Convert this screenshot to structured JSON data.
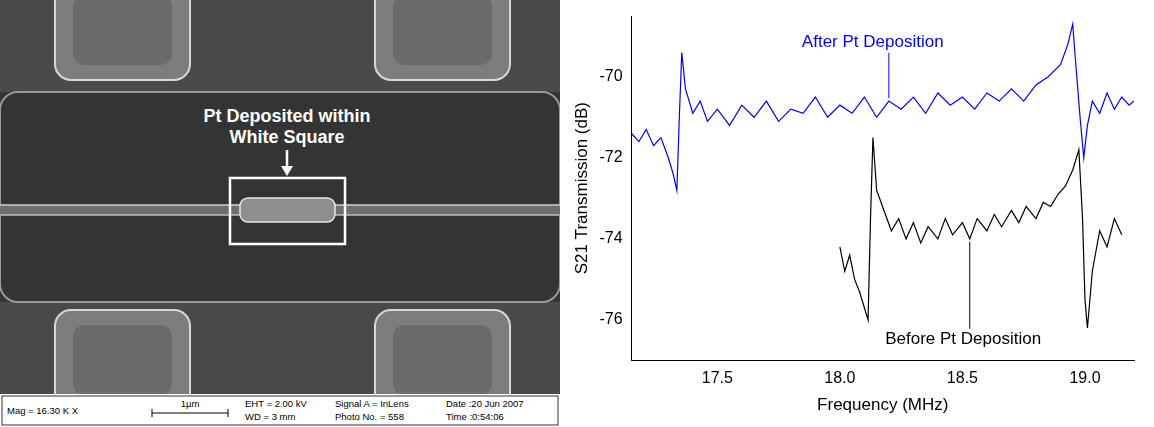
{
  "sem_image": {
    "annotation": "Pt Deposited within White Square",
    "info_bar": {
      "magnification": "Mag = 16.30 K X",
      "scale_bar": "1µm",
      "eht": "EHT = 2.00 kV",
      "wd": "WD = 3 mm",
      "signal": "Signal A = InLens",
      "photo": "Photo No. = 558",
      "date": "Date :20 Jun 2007",
      "time": "Time :0:54:06"
    }
  },
  "chart_data": {
    "type": "line",
    "x_label": "Frequency (MHz)",
    "y_label": "S21 Transmission (dB)",
    "xlim": [
      17.15,
      19.2
    ],
    "xticks": [
      17.5,
      {
        "value": 18,
        "label": "18.0"
      },
      18.5,
      {
        "value": 19,
        "label": "19.0"
      }
    ],
    "ylim": [
      -77,
      -68.5
    ],
    "yticks": [
      -76,
      -74,
      -72,
      -70
    ],
    "grid": false,
    "marker": "none",
    "line_style": "solid",
    "series": [
      {
        "name": "After Pt Deposition",
        "color": "#0000ff",
        "x": [
          17.15,
          17.18,
          17.21,
          17.24,
          17.27,
          17.3,
          17.32,
          17.335,
          17.345,
          17.355,
          17.37,
          17.4,
          17.43,
          17.46,
          17.5,
          17.55,
          17.6,
          17.65,
          17.7,
          17.75,
          17.8,
          17.85,
          17.9,
          17.95,
          18.0,
          18.05,
          18.1,
          18.15,
          18.2,
          18.25,
          18.3,
          18.35,
          18.4,
          18.45,
          18.5,
          18.55,
          18.6,
          18.65,
          18.7,
          18.75,
          18.8,
          18.85,
          18.9,
          18.93,
          18.95,
          18.96,
          18.98,
          18.995,
          19.01,
          19.03,
          19.06,
          19.09,
          19.12,
          19.15,
          19.18,
          19.2
        ],
        "values": [
          -71.4,
          -71.6,
          -71.3,
          -71.7,
          -71.5,
          -72.0,
          -72.4,
          -72.8,
          -71.0,
          -69.4,
          -70.3,
          -70.9,
          -70.6,
          -71.1,
          -70.8,
          -71.2,
          -70.7,
          -71.0,
          -70.6,
          -71.1,
          -70.8,
          -70.9,
          -70.5,
          -71.0,
          -70.7,
          -70.9,
          -70.5,
          -71.0,
          -70.6,
          -70.8,
          -70.5,
          -70.9,
          -70.4,
          -70.7,
          -70.5,
          -70.8,
          -70.4,
          -70.6,
          -70.3,
          -70.6,
          -70.2,
          -70.0,
          -69.7,
          -69.2,
          -68.7,
          -69.5,
          -71.0,
          -72.0,
          -71.2,
          -70.6,
          -70.9,
          -70.4,
          -70.8,
          -70.5,
          -70.7,
          -70.6
        ]
      },
      {
        "name": "Before Pt Deposition",
        "color": "#000000",
        "x": [
          18.0,
          18.02,
          18.04,
          18.06,
          18.08,
          18.1,
          18.115,
          18.125,
          18.135,
          18.15,
          18.18,
          18.21,
          18.24,
          18.27,
          18.3,
          18.33,
          18.36,
          18.4,
          18.43,
          18.46,
          18.5,
          18.53,
          18.56,
          18.6,
          18.63,
          18.66,
          18.7,
          18.73,
          18.76,
          18.8,
          18.83,
          18.86,
          18.89,
          18.92,
          18.95,
          18.975,
          18.99,
          19.0,
          19.01,
          19.03,
          19.06,
          19.09,
          19.12,
          19.15
        ],
        "values": [
          -74.2,
          -74.8,
          -74.4,
          -75.0,
          -75.3,
          -75.7,
          -76.0,
          -73.5,
          -71.5,
          -72.8,
          -73.3,
          -73.8,
          -73.5,
          -74.0,
          -73.6,
          -74.1,
          -73.7,
          -74.0,
          -73.5,
          -73.9,
          -73.6,
          -74.0,
          -73.5,
          -73.8,
          -73.4,
          -73.7,
          -73.3,
          -73.6,
          -73.2,
          -73.5,
          -73.1,
          -73.2,
          -72.9,
          -72.7,
          -72.3,
          -71.8,
          -73.5,
          -75.5,
          -76.2,
          -74.8,
          -73.8,
          -74.2,
          -73.5,
          -73.9
        ]
      }
    ]
  }
}
